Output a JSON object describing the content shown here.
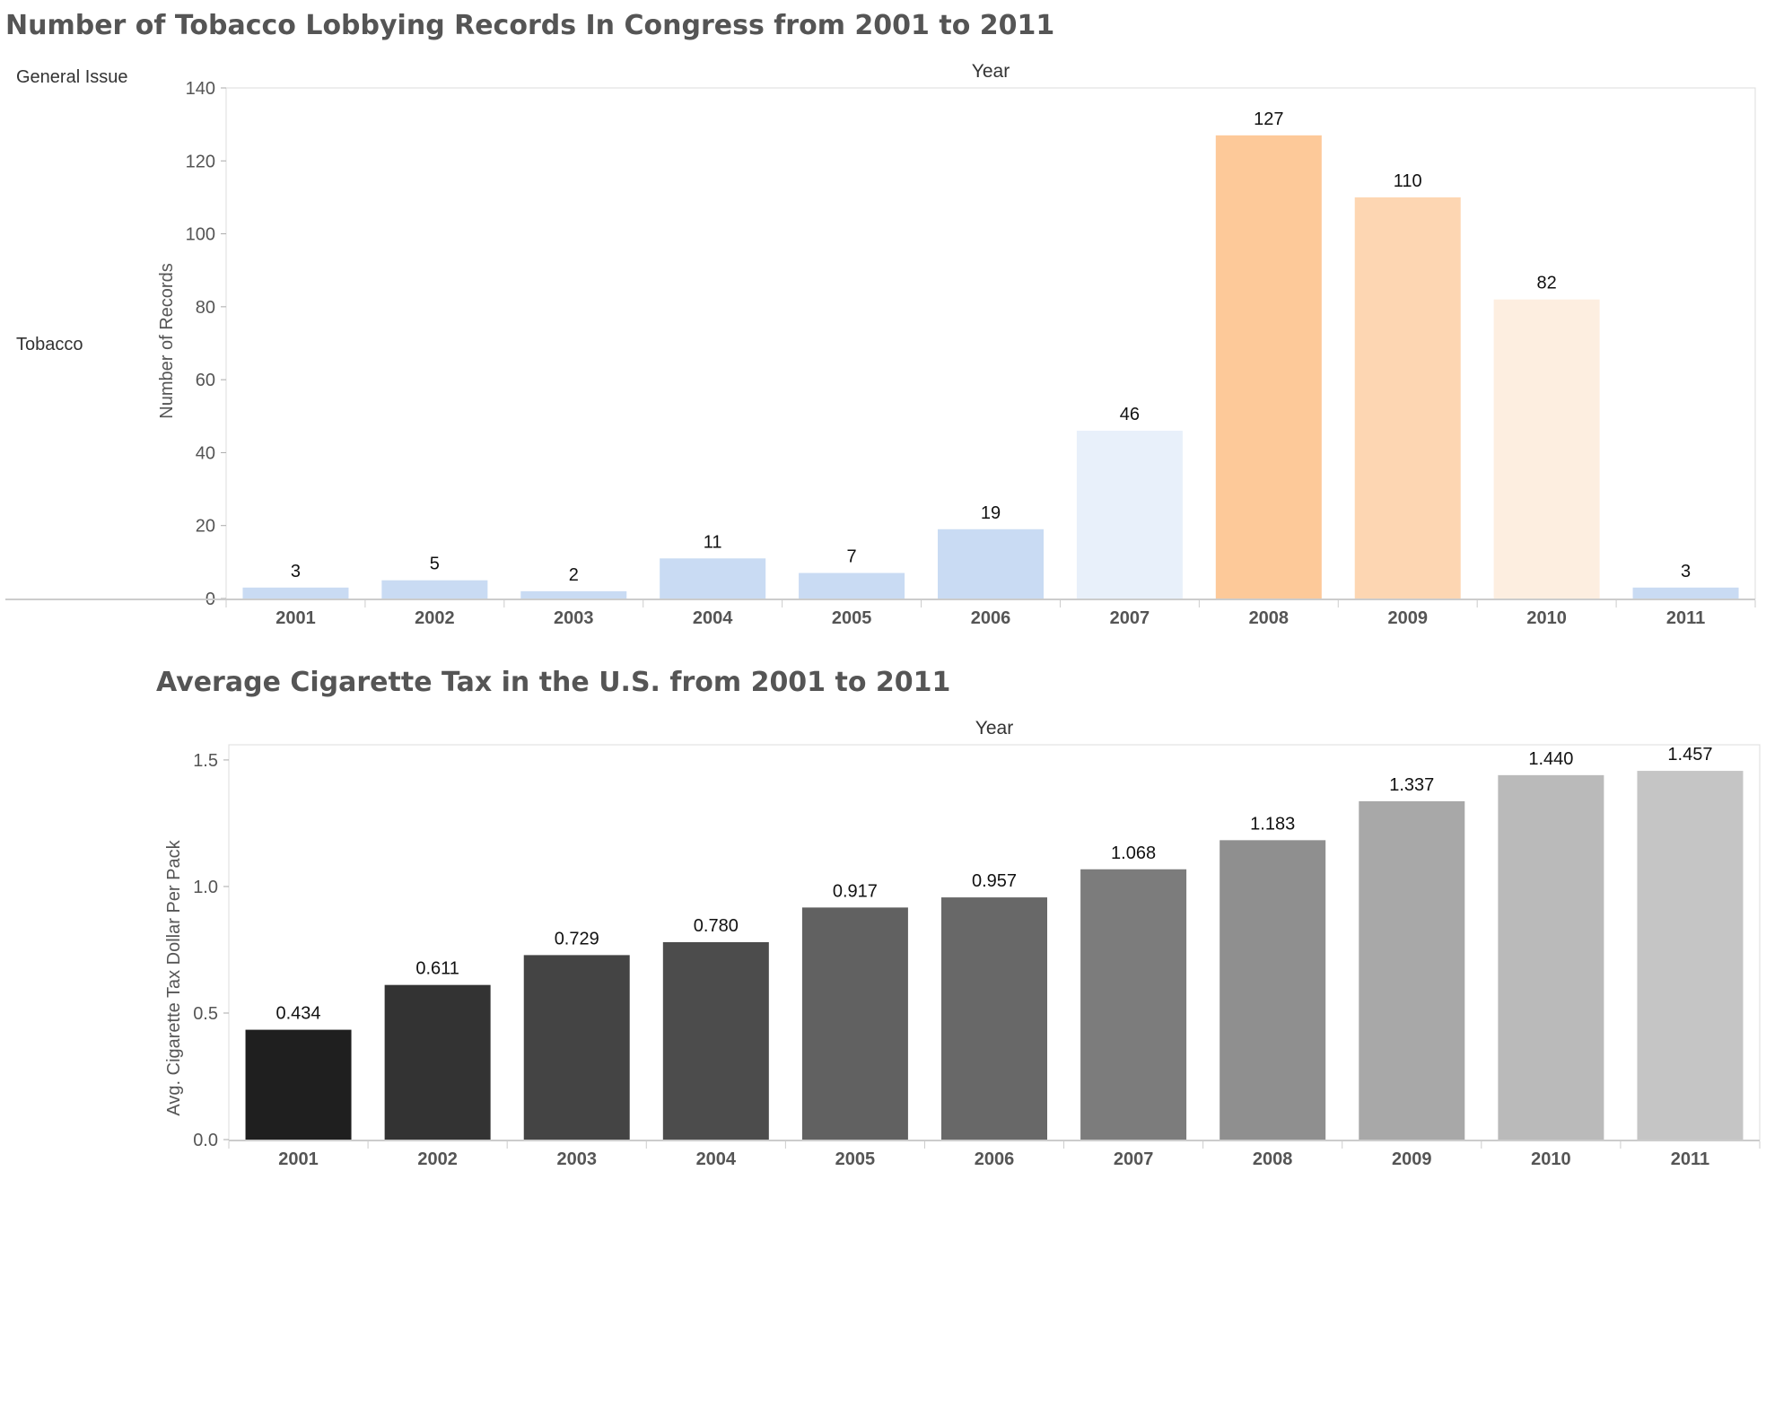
{
  "chart_data": [
    {
      "type": "bar",
      "title": "Number of Tobacco Lobbying Records In Congress from 2001 to 2011",
      "column_header": "Year",
      "row_dimension_header": "General Issue",
      "row_label": "Tobacco",
      "xlabel": "",
      "ylabel": "Number of Records",
      "categories": [
        "2001",
        "2002",
        "2003",
        "2004",
        "2005",
        "2006",
        "2007",
        "2008",
        "2009",
        "2010",
        "2011"
      ],
      "values": [
        3,
        5,
        2,
        11,
        7,
        19,
        46,
        127,
        110,
        82,
        3
      ],
      "value_labels": [
        "3",
        "5",
        "2",
        "11",
        "7",
        "19",
        "46",
        "127",
        "110",
        "82",
        "3"
      ],
      "bar_colors": [
        "#c9dbf3",
        "#c9dbf3",
        "#c9dbf3",
        "#c9dbf3",
        "#c9dbf3",
        "#c9dbf3",
        "#e8f0fa",
        "#fdc999",
        "#fdd6b2",
        "#fdeee0",
        "#c9dbf3"
      ],
      "ylim": [
        0,
        140
      ],
      "yticks": [
        0,
        20,
        40,
        60,
        80,
        100,
        120,
        140
      ],
      "ytick_labels": [
        "0",
        "20",
        "40",
        "60",
        "80",
        "100",
        "120",
        "140"
      ],
      "grid": false
    },
    {
      "type": "bar",
      "title": "Average Cigarette Tax in the U.S. from 2001 to 2011",
      "column_header": "Year",
      "xlabel": "",
      "ylabel": "Avg. Cigarette Tax Dollar Per Pack",
      "categories": [
        "2001",
        "2002",
        "2003",
        "2004",
        "2005",
        "2006",
        "2007",
        "2008",
        "2009",
        "2010",
        "2011"
      ],
      "values": [
        0.434,
        0.611,
        0.729,
        0.78,
        0.917,
        0.957,
        1.068,
        1.183,
        1.337,
        1.44,
        1.457
      ],
      "value_labels": [
        "0.434",
        "0.611",
        "0.729",
        "0.780",
        "0.917",
        "0.957",
        "1.068",
        "1.183",
        "1.337",
        "1.440",
        "1.457"
      ],
      "bar_colors": [
        "#1f1f1f",
        "#333333",
        "#444444",
        "#4c4c4c",
        "#616161",
        "#686868",
        "#7c7c7c",
        "#8f8f8f",
        "#a8a8a8",
        "#bababa",
        "#c5c5c5"
      ],
      "ylim": [
        0,
        1.56
      ],
      "yticks": [
        0,
        0.5,
        1.0,
        1.5
      ],
      "ytick_labels": [
        "0.0",
        "0.5",
        "1.0",
        "1.5"
      ],
      "grid": false
    }
  ],
  "colors": {
    "title": "#555555",
    "axis_line": "#cccccc",
    "frame_border": "#dddddd",
    "text": "#333333"
  }
}
